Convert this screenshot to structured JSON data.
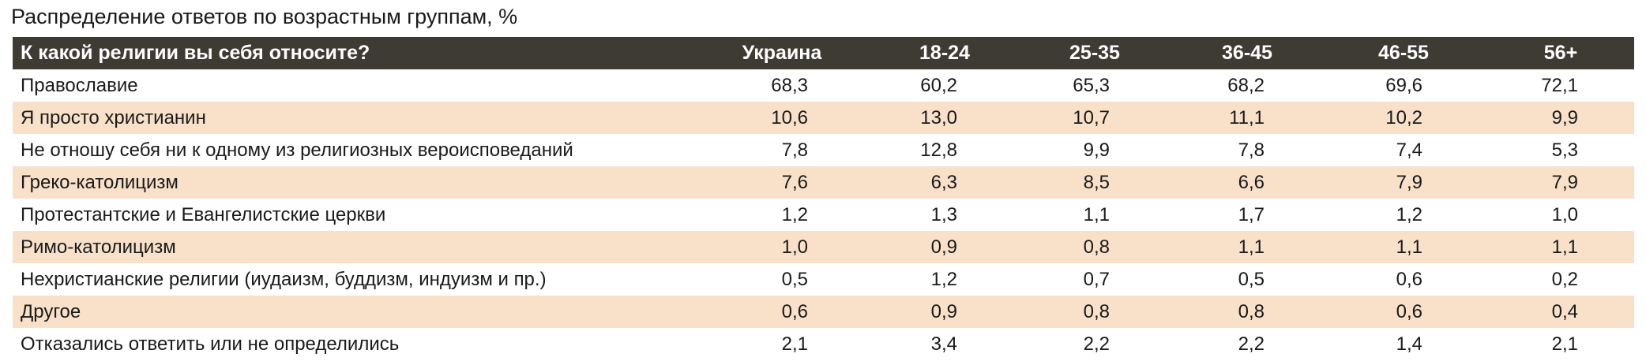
{
  "title": "Распределение ответов по возрастным группам, %",
  "table": {
    "header": [
      "К какой религии вы себя относите?",
      "Украина",
      "18-24",
      "25-35",
      "36-45",
      "46-55",
      "56+"
    ],
    "rows": [
      [
        "Православие",
        "68,3",
        "60,2",
        "65,3",
        "68,2",
        "69,6",
        "72,1"
      ],
      [
        "Я просто христианин",
        "10,6",
        "13,0",
        "10,7",
        "11,1",
        "10,2",
        "9,9"
      ],
      [
        "Не отношу себя ни к одному из религиозных вероисповеданий",
        "7,8",
        "12,8",
        "9,9",
        "7,8",
        "7,4",
        "5,3"
      ],
      [
        "Греко-католицизм",
        "7,6",
        "6,3",
        "8,5",
        "6,6",
        "7,9",
        "7,9"
      ],
      [
        "Протестантские и Евангелистские церкви",
        "1,2",
        "1,3",
        "1,1",
        "1,7",
        "1,2",
        "1,0"
      ],
      [
        "Римо-католицизм",
        "1,0",
        "0,9",
        "0,8",
        "1,1",
        "1,1",
        "1,1"
      ],
      [
        "Нехристианские религии (иудаизм, буддизм, индуизм и пр.)",
        "0,5",
        "1,2",
        "0,7",
        "0,5",
        "0,6",
        "0,2"
      ],
      [
        "Другое",
        "0,6",
        "0,9",
        "0,8",
        "0,8",
        "0,6",
        "0,4"
      ],
      [
        "Отказались ответить или не определились",
        "2,1",
        "3,4",
        "2,2",
        "2,2",
        "1,4",
        "2,1"
      ]
    ]
  }
}
